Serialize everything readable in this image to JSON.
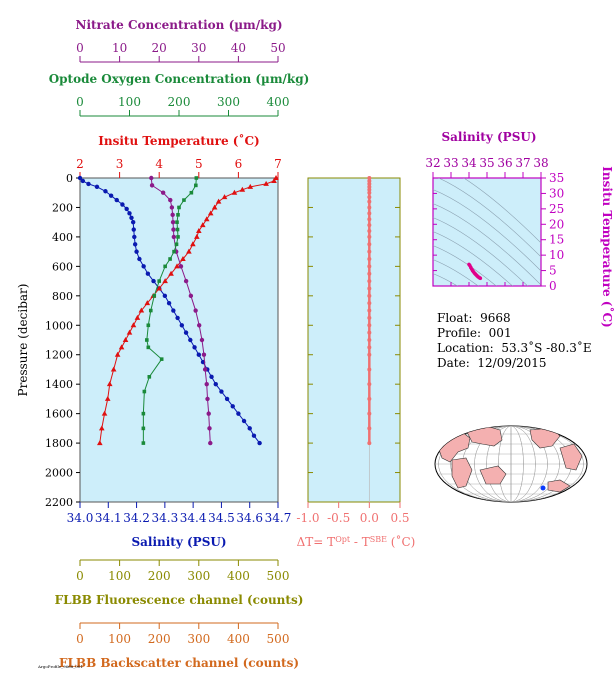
{
  "info": {
    "float_label": "Float:",
    "float_value": "9668",
    "profile_label": "Profile:",
    "profile_value": "001",
    "location_label": "Location:",
    "location_value": "53.3˚S  -80.3˚E",
    "date_label": "Date:",
    "date_value": "12/09/2015",
    "footnote": "ArgoProfile_9668_001"
  },
  "colors": {
    "nitrate": "#8b1a89",
    "oxygen": "#1a8a3a",
    "temperature": "#e01010",
    "salinity": "#0a1ab0",
    "fluorescence": "#8a8a00",
    "backscatter": "#d2691e",
    "delta_t": "#f07070",
    "panel_bg": "#cdeefa",
    "land": "#f4b0b0",
    "ts_curve": "#e0008a"
  },
  "chart_data": [
    {
      "type": "line",
      "id": "main-profile",
      "ylabel": "Pressure (decibar)",
      "ylim": [
        2200,
        0
      ],
      "yticks": [
        0,
        200,
        400,
        600,
        800,
        1000,
        1200,
        1400,
        1600,
        1800,
        2000,
        2200
      ],
      "axes": [
        {
          "key": "nitrate",
          "label": "Nitrate Concentration (µm/kg)",
          "lim": [
            0,
            50
          ],
          "ticks": [
            0,
            10,
            20,
            30,
            40,
            50
          ],
          "side": "top"
        },
        {
          "key": "oxygen",
          "label": "Optode Oxygen Concentration (µm/kg)",
          "lim": [
            0,
            400
          ],
          "ticks": [
            0,
            100,
            200,
            300,
            400
          ],
          "side": "top"
        },
        {
          "key": "temperature",
          "label": "Insitu Temperature (˚C)",
          "lim": [
            2,
            7
          ],
          "ticks": [
            2,
            3,
            4,
            5,
            6,
            7
          ],
          "side": "top"
        },
        {
          "key": "salinity",
          "label": "Salinity (PSU)",
          "lim": [
            34.0,
            34.7
          ],
          "ticks": [
            "34.0",
            "34.1",
            "34.2",
            "34.3",
            "34.4",
            "34.5",
            "34.6",
            "34.7"
          ],
          "side": "bottom"
        },
        {
          "key": "fluorescence",
          "label": "FLBB Fluorescence channel (counts)",
          "lim": [
            0,
            500
          ],
          "ticks": [
            0,
            100,
            200,
            300,
            400,
            500
          ],
          "side": "bottom"
        },
        {
          "key": "backscatter",
          "label": "FLBB Backscatter channel (counts)",
          "lim": [
            0,
            500
          ],
          "ticks": [
            0,
            100,
            200,
            300,
            400,
            500
          ],
          "side": "bottom"
        }
      ],
      "series": [
        {
          "key": "salinity",
          "marker": "circle",
          "points": [
            [
              34.0,
              0
            ],
            [
              34.01,
              20
            ],
            [
              34.03,
              40
            ],
            [
              34.06,
              60
            ],
            [
              34.09,
              90
            ],
            [
              34.11,
              120
            ],
            [
              34.13,
              150
            ],
            [
              34.15,
              180
            ],
            [
              34.165,
              210
            ],
            [
              34.175,
              240
            ],
            [
              34.182,
              270
            ],
            [
              34.188,
              300
            ],
            [
              34.19,
              350
            ],
            [
              34.192,
              400
            ],
            [
              34.195,
              450
            ],
            [
              34.2,
              500
            ],
            [
              34.21,
              550
            ],
            [
              34.225,
              600
            ],
            [
              34.24,
              650
            ],
            [
              34.26,
              700
            ],
            [
              34.28,
              750
            ],
            [
              34.3,
              800
            ],
            [
              34.315,
              850
            ],
            [
              34.33,
              900
            ],
            [
              34.345,
              950
            ],
            [
              34.36,
              1000
            ],
            [
              34.375,
              1050
            ],
            [
              34.39,
              1100
            ],
            [
              34.405,
              1150
            ],
            [
              34.42,
              1200
            ],
            [
              34.435,
              1250
            ],
            [
              34.45,
              1300
            ],
            [
              34.465,
              1350
            ],
            [
              34.48,
              1400
            ],
            [
              34.5,
              1450
            ],
            [
              34.52,
              1500
            ],
            [
              34.54,
              1550
            ],
            [
              34.56,
              1600
            ],
            [
              34.58,
              1650
            ],
            [
              34.6,
              1700
            ],
            [
              34.615,
              1750
            ],
            [
              34.635,
              1800
            ]
          ]
        },
        {
          "key": "temperature",
          "marker": "triangle",
          "points": [
            [
              6.95,
              0
            ],
            [
              6.9,
              20
            ],
            [
              6.7,
              40
            ],
            [
              6.3,
              60
            ],
            [
              6.1,
              80
            ],
            [
              5.9,
              100
            ],
            [
              5.65,
              130
            ],
            [
              5.5,
              160
            ],
            [
              5.4,
              200
            ],
            [
              5.3,
              240
            ],
            [
              5.2,
              280
            ],
            [
              5.1,
              320
            ],
            [
              5.0,
              360
            ],
            [
              4.95,
              400
            ],
            [
              4.85,
              450
            ],
            [
              4.75,
              500
            ],
            [
              4.6,
              550
            ],
            [
              4.45,
              600
            ],
            [
              4.3,
              650
            ],
            [
              4.15,
              700
            ],
            [
              4.0,
              750
            ],
            [
              3.85,
              800
            ],
            [
              3.7,
              850
            ],
            [
              3.55,
              900
            ],
            [
              3.45,
              950
            ],
            [
              3.35,
              1000
            ],
            [
              3.25,
              1050
            ],
            [
              3.15,
              1100
            ],
            [
              3.05,
              1150
            ],
            [
              2.95,
              1200
            ],
            [
              2.85,
              1300
            ],
            [
              2.75,
              1400
            ],
            [
              2.7,
              1500
            ],
            [
              2.62,
              1600
            ],
            [
              2.55,
              1700
            ],
            [
              2.5,
              1800
            ]
          ]
        },
        {
          "key": "nitrate",
          "marker": "circle",
          "points": [
            [
              18,
              0
            ],
            [
              18.2,
              50
            ],
            [
              21,
              100
            ],
            [
              22.8,
              150
            ],
            [
              23.2,
              200
            ],
            [
              23.4,
              250
            ],
            [
              23.5,
              300
            ],
            [
              23.6,
              350
            ],
            [
              23.7,
              400
            ],
            [
              24.3,
              500
            ],
            [
              25.5,
              600
            ],
            [
              26.8,
              700
            ],
            [
              28,
              800
            ],
            [
              29.2,
              900
            ],
            [
              30.1,
              1000
            ],
            [
              30.8,
              1100
            ],
            [
              31.3,
              1200
            ],
            [
              31.6,
              1300
            ],
            [
              32,
              1400
            ],
            [
              32.2,
              1500
            ],
            [
              32.5,
              1600
            ],
            [
              32.7,
              1700
            ],
            [
              32.9,
              1800
            ]
          ]
        },
        {
          "key": "oxygen",
          "marker": "square",
          "points": [
            [
              235,
              0
            ],
            [
              234,
              50
            ],
            [
              225,
              100
            ],
            [
              210,
              150
            ],
            [
              200,
              200
            ],
            [
              198,
              250
            ],
            [
              196,
              300
            ],
            [
              197,
              350
            ],
            [
              198,
              400
            ],
            [
              195,
              450
            ],
            [
              190,
              500
            ],
            [
              182,
              550
            ],
            [
              172,
              600
            ],
            [
              160,
              700
            ],
            [
              150,
              800
            ],
            [
              143,
              900
            ],
            [
              138,
              1000
            ],
            [
              135,
              1100
            ],
            [
              138,
              1150
            ],
            [
              165,
              1230
            ],
            [
              140,
              1350
            ],
            [
              130,
              1450
            ],
            [
              128,
              1600
            ],
            [
              128,
              1700
            ],
            [
              128,
              1800
            ]
          ]
        }
      ]
    },
    {
      "type": "scatter",
      "id": "delta-t",
      "xlabel": "ΔT= T^Opt - T^SBE (˚C)",
      "xlim": [
        -1.0,
        0.5
      ],
      "xticks": [
        "-1.0",
        "-0.5",
        "0.0",
        "0.5"
      ],
      "ylim": [
        2200,
        0
      ],
      "series": [
        {
          "key": "delta_t",
          "points": [
            [
              0.0,
              0
            ],
            [
              0.0,
              20
            ],
            [
              0.0,
              40
            ],
            [
              0.0,
              60
            ],
            [
              0.0,
              80
            ],
            [
              0.0,
              100
            ],
            [
              0.0,
              130
            ],
            [
              0.0,
              160
            ],
            [
              0.0,
              200
            ],
            [
              0.0,
              240
            ],
            [
              0.0,
              280
            ],
            [
              0.0,
              320
            ],
            [
              0.0,
              360
            ],
            [
              0.0,
              400
            ],
            [
              0.0,
              450
            ],
            [
              0.0,
              500
            ],
            [
              0.0,
              550
            ],
            [
              0.0,
              600
            ],
            [
              0.0,
              650
            ],
            [
              0.0,
              700
            ],
            [
              0.0,
              750
            ],
            [
              0.0,
              800
            ],
            [
              0.0,
              850
            ],
            [
              0.0,
              900
            ],
            [
              0.0,
              950
            ],
            [
              0.0,
              1000
            ],
            [
              0.0,
              1050
            ],
            [
              0.0,
              1100
            ],
            [
              0.0,
              1150
            ],
            [
              0.0,
              1200
            ],
            [
              0.0,
              1300
            ],
            [
              0.0,
              1400
            ],
            [
              0.0,
              1500
            ],
            [
              0.0,
              1600
            ],
            [
              0.0,
              1700
            ],
            [
              0.0,
              1800
            ]
          ]
        }
      ]
    },
    {
      "type": "scatter",
      "id": "ts-diagram",
      "title": "Salinity (PSU)",
      "xlabel": "Salinity (PSU)",
      "ylabel": "Insitu Temperature (˚C)",
      "xlim": [
        32,
        38
      ],
      "xticks": [
        32,
        33,
        34,
        35,
        36,
        37,
        38
      ],
      "ylim": [
        0,
        35
      ],
      "yticks": [
        0,
        5,
        10,
        15,
        20,
        25,
        30,
        35
      ],
      "series": [
        {
          "key": "ts_curve",
          "points": [
            [
              34.0,
              7.0
            ],
            [
              34.05,
              6.6
            ],
            [
              34.1,
              6.0
            ],
            [
              34.15,
              5.5
            ],
            [
              34.2,
              5.0
            ],
            [
              34.25,
              4.6
            ],
            [
              34.3,
              4.2
            ],
            [
              34.35,
              3.9
            ],
            [
              34.4,
              3.6
            ],
            [
              34.45,
              3.3
            ],
            [
              34.5,
              3.0
            ],
            [
              34.55,
              2.8
            ],
            [
              34.6,
              2.6
            ],
            [
              34.63,
              2.5
            ]
          ]
        }
      ]
    }
  ]
}
